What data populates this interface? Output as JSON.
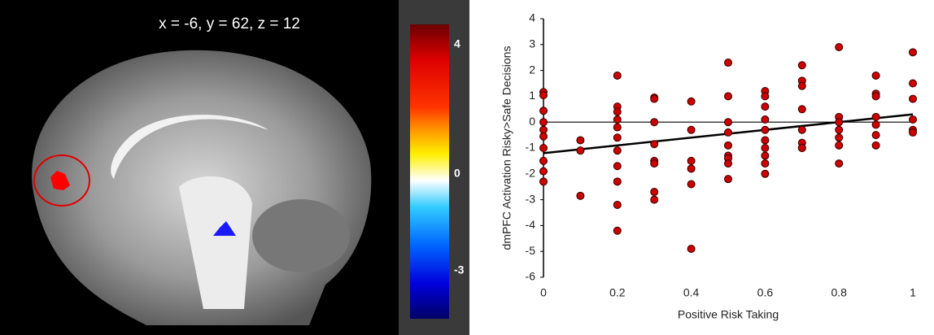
{
  "brain_panel": {
    "title": "x = -6, y = 62, z = 12",
    "colorbar": {
      "lim": [
        -4.49,
        4.63
      ],
      "ticks": [
        4,
        0,
        -3
      ]
    }
  },
  "chart_data": {
    "type": "scatter",
    "color": "#cc0000",
    "x_label": "Positive Risk Taking",
    "y_label": "dmPFC Activation Risky>Safe Decisions",
    "xlim": [
      0,
      1
    ],
    "ylim": [
      -6,
      4
    ],
    "xticks": [
      0,
      0.2,
      0.4,
      0.6,
      0.8,
      1
    ],
    "yticks": [
      -6,
      -5,
      -4,
      -3,
      -2,
      -1,
      0,
      1,
      2,
      3,
      4
    ],
    "x": [
      0,
      0,
      0,
      0,
      0,
      0,
      0,
      0,
      0,
      0,
      0.1,
      0.1,
      0.1,
      0.2,
      0.2,
      0.2,
      0.2,
      0.2,
      0.2,
      0.2,
      0.2,
      0.2,
      0.2,
      0.2,
      0.3,
      0.3,
      0.3,
      0.3,
      0.3,
      0.3,
      0.3,
      0.3,
      0.4,
      0.4,
      0.4,
      0.4,
      0.4,
      0.4,
      0.5,
      0.5,
      0.5,
      0.5,
      0.5,
      0.5,
      0.5,
      0.5,
      0.5,
      0.6,
      0.6,
      0.6,
      0.6,
      0.6,
      0.6,
      0.6,
      0.6,
      0.6,
      0.6,
      0.7,
      0.7,
      0.7,
      0.7,
      0.7,
      0.7,
      0.7,
      0.7,
      0.8,
      0.8,
      0.8,
      0.8,
      0.8,
      0.8,
      0.8,
      0.9,
      0.9,
      0.9,
      0.9,
      0.9,
      0.9,
      0.9,
      1,
      1,
      1,
      1,
      1,
      1
    ],
    "y": [
      1.16,
      1.04,
      0.44,
      0,
      -0.3,
      -0.55,
      -1,
      -1.5,
      -1.9,
      -2.3,
      -0.7,
      -1.1,
      -2.85,
      1.8,
      0.6,
      0.4,
      0.1,
      -0.2,
      -0.6,
      -1.1,
      -1.7,
      -2.3,
      -3.2,
      -4.2,
      0.95,
      0.9,
      0,
      -0.85,
      -1.5,
      -1.6,
      -2.7,
      -3,
      0.8,
      -0.3,
      -1.5,
      -1.8,
      -2.4,
      -4.9,
      2.3,
      1,
      0,
      -0.4,
      -0.9,
      -1.3,
      -1.4,
      -1.6,
      -2.2,
      1.2,
      1,
      0.6,
      0.1,
      -0.3,
      -0.7,
      -1,
      -1.3,
      -1.6,
      -2,
      2.2,
      1.6,
      1.4,
      0.5,
      -0.3,
      -0.8,
      -1,
      -1,
      2.9,
      0.2,
      0,
      -0.3,
      -0.6,
      -0.9,
      -1.6,
      1.8,
      1.1,
      1,
      0.2,
      -0.1,
      -0.5,
      -0.9,
      2.7,
      1.5,
      0.9,
      0.1,
      -0.3,
      -0.4
    ],
    "trendline": {
      "x": [
        0,
        1
      ],
      "y": [
        -1.2,
        0.3
      ]
    }
  }
}
